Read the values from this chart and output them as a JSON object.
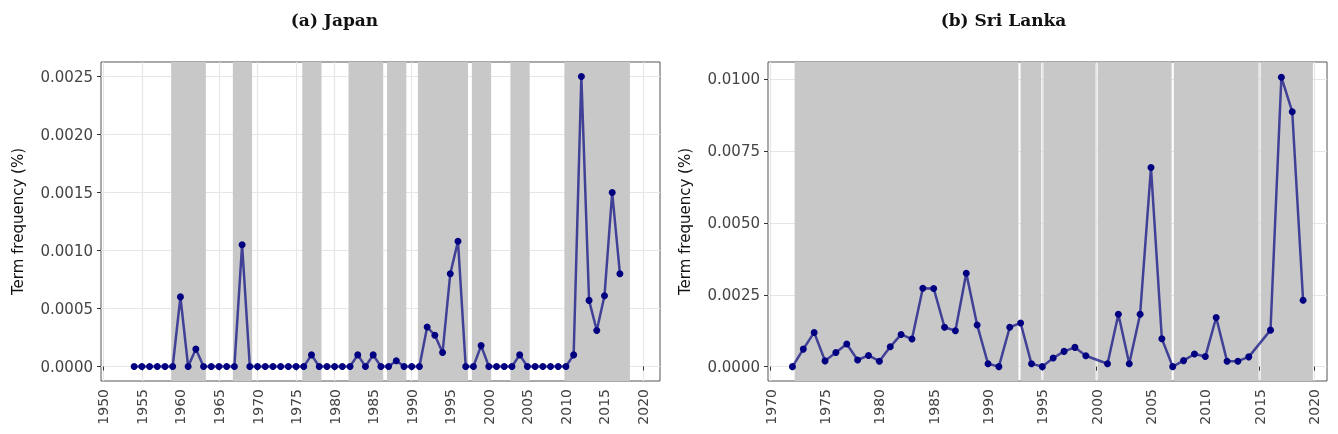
{
  "chart_data": [
    {
      "type": "line",
      "title": "(a) Japan",
      "ylabel": "Term frequency (%)",
      "color": "#000080",
      "marker": "circle",
      "line_style": "solid",
      "grid": true,
      "x": [
        1954,
        1955,
        1956,
        1957,
        1958,
        1959,
        1960,
        1961,
        1962,
        1963,
        1964,
        1965,
        1966,
        1967,
        1968,
        1969,
        1970,
        1971,
        1972,
        1973,
        1974,
        1975,
        1976,
        1977,
        1978,
        1979,
        1980,
        1981,
        1982,
        1983,
        1984,
        1985,
        1986,
        1987,
        1988,
        1989,
        1990,
        1991,
        1992,
        1993,
        1994,
        1995,
        1996,
        1997,
        1998,
        1999,
        2000,
        2001,
        2002,
        2003,
        2004,
        2005,
        2006,
        2007,
        2008,
        2009,
        2010,
        2011,
        2012,
        2013,
        2014,
        2015,
        2016,
        2017
      ],
      "values": [
        0,
        0,
        0,
        0,
        0,
        0,
        0.0006,
        0,
        0.00015,
        0,
        0,
        0,
        0,
        0,
        0.00105,
        0,
        0,
        0,
        0,
        0,
        0,
        0,
        0,
        0.0001,
        0,
        0,
        0,
        0,
        0,
        0.0001,
        0,
        0.0001,
        0,
        0,
        5e-05,
        0,
        0,
        0,
        0.00034,
        0.00027,
        0.00012,
        0.0008,
        0.00108,
        0,
        0,
        0.00018,
        0,
        0,
        0,
        0,
        0.0001,
        0,
        0,
        0,
        0,
        0,
        0,
        0.0001,
        0.0025,
        0.00057,
        0.00031,
        0.00061,
        0.0015,
        0.0008
      ],
      "xlim": [
        1949.7,
        2022.2
      ],
      "xticks": [
        1950,
        1955,
        1960,
        1965,
        1970,
        1975,
        1980,
        1985,
        1990,
        1995,
        2000,
        2005,
        2010,
        2015,
        2020
      ],
      "ylim": [
        -0.000125,
        0.002625
      ],
      "yticks": [
        {
          "value": 0,
          "label": "0.0000"
        },
        {
          "value": 0.0005,
          "label": "0.0005"
        },
        {
          "value": 0.001,
          "label": "0.0010"
        },
        {
          "value": 0.0015,
          "label": "0.0015"
        },
        {
          "value": 0.002,
          "label": "0.0020"
        },
        {
          "value": 0.0025,
          "label": "0.0025"
        }
      ],
      "bands": [
        {
          "axis": "x",
          "from": 1958.8,
          "to": 1963.3,
          "color": "#c8c8c8"
        },
        {
          "axis": "x",
          "from": 1966.8,
          "to": 1969.3,
          "color": "#c8c8c8"
        },
        {
          "axis": "x",
          "from": 1975.8,
          "to": 1978.3,
          "color": "#c8c8c8"
        },
        {
          "axis": "x",
          "from": 1981.8,
          "to": 1986.3,
          "color": "#c8c8c8"
        },
        {
          "axis": "x",
          "from": 1986.8,
          "to": 1989.3,
          "color": "#c8c8c8"
        },
        {
          "axis": "x",
          "from": 1990.8,
          "to": 1997.3,
          "color": "#c8c8c8"
        },
        {
          "axis": "x",
          "from": 1997.8,
          "to": 2000.3,
          "color": "#c8c8c8"
        },
        {
          "axis": "x",
          "from": 2002.8,
          "to": 2005.3,
          "color": "#c8c8c8"
        },
        {
          "axis": "x",
          "from": 2009.8,
          "to": 2018.3,
          "color": "#c8c8c8"
        }
      ]
    },
    {
      "type": "line",
      "title": "(b) Sri Lanka",
      "ylabel": "Term frequency (%)",
      "color": "#000080",
      "marker": "circle",
      "line_style": "solid",
      "grid": true,
      "x": [
        1972,
        1973,
        1974,
        1975,
        1976,
        1977,
        1978,
        1979,
        1980,
        1981,
        1982,
        1983,
        1984,
        1985,
        1986,
        1987,
        1988,
        1989,
        1990,
        1991,
        1992,
        1993,
        1994,
        1995,
        1996,
        1997,
        1998,
        1999,
        2001,
        2002,
        2003,
        2004,
        2005,
        2006,
        2007,
        2008,
        2009,
        2010,
        2011,
        2012,
        2013,
        2014,
        2016,
        2017,
        2018,
        2019
      ],
      "values": [
        0,
        0.00061,
        0.00119,
        0.0002,
        0.00049,
        0.00079,
        0.00023,
        0.00039,
        0.00019,
        0.00069,
        0.00112,
        0.00096,
        0.00273,
        0.00272,
        0.00137,
        0.00125,
        0.00325,
        0.00145,
        0.0001,
        0,
        0.00137,
        0.00152,
        0.0001,
        0,
        0.0003,
        0.00053,
        0.00067,
        0.00038,
        0.0001,
        0.00182,
        0.0001,
        0.00182,
        0.00693,
        0.00097,
        0,
        0.00021,
        0.00044,
        0.00035,
        0.00171,
        0.00019,
        0.00019,
        0.00034,
        0.00127,
        0.01007,
        0.00887,
        0.00231
      ],
      "xlim": [
        1969.75,
        2021.2
      ],
      "xticks": [
        1970,
        1975,
        1980,
        1985,
        1990,
        1995,
        2000,
        2005,
        2010,
        2015,
        2020
      ],
      "ylim": [
        -0.0005,
        0.0106
      ],
      "yticks": [
        {
          "value": 0,
          "label": "0.0000"
        },
        {
          "value": 0.0025,
          "label": "0.0025"
        },
        {
          "value": 0.005,
          "label": "0.0050"
        },
        {
          "value": 0.0075,
          "label": "0.0075"
        },
        {
          "value": 0.01,
          "label": "0.0100"
        }
      ],
      "bands": [
        {
          "axis": "x",
          "from": 1972.2,
          "to": 1992.8,
          "color": "#c8c8c8"
        },
        {
          "axis": "x",
          "from": 1993.0,
          "to": 1994.9,
          "color": "#c8c8c8"
        },
        {
          "axis": "x",
          "from": 1995.1,
          "to": 1999.9,
          "color": "#c8c8c8"
        },
        {
          "axis": "x",
          "from": 2000.1,
          "to": 2006.9,
          "color": "#c8c8c8"
        },
        {
          "axis": "x",
          "from": 2007.1,
          "to": 2014.9,
          "color": "#c8c8c8"
        },
        {
          "axis": "x",
          "from": 2015.1,
          "to": 2019.9,
          "color": "#c8c8c8"
        }
      ]
    }
  ]
}
